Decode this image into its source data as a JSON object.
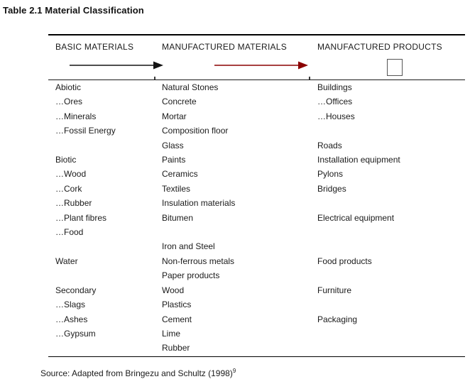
{
  "title": "Table 2.1 Material Classification",
  "table": {
    "columns": [
      {
        "header": "BASIC MATERIALS",
        "marker": "black-arrow-icon"
      },
      {
        "header": "MANUFACTURED MATERIALS",
        "marker": "dark-red-arrow-icon"
      },
      {
        "header": "MANUFACTURED PRODUCTS",
        "marker": "square-outline-icon"
      }
    ],
    "rows": [
      [
        "Abiotic",
        "Natural Stones",
        "Buildings"
      ],
      [
        "…Ores",
        "Concrete",
        "…Offices"
      ],
      [
        "…Minerals",
        "Mortar",
        "…Houses"
      ],
      [
        "…Fossil Energy",
        "Composition floor",
        ""
      ],
      [
        "",
        "Glass",
        "Roads"
      ],
      [
        "Biotic",
        "Paints",
        "Installation equipment"
      ],
      [
        "…Wood",
        "Ceramics",
        "Pylons"
      ],
      [
        "…Cork",
        "Textiles",
        "Bridges"
      ],
      [
        "…Rubber",
        "Insulation materials",
        ""
      ],
      [
        "…Plant fibres",
        "Bitumen",
        "Electrical equipment"
      ],
      [
        "…Food",
        "",
        ""
      ],
      [
        "",
        "Iron and Steel",
        ""
      ],
      [
        "Water",
        "Non-ferrous metals",
        "Food products"
      ],
      [
        "",
        "Paper products",
        ""
      ],
      [
        "Secondary",
        "Wood",
        "Furniture"
      ],
      [
        "…Slags",
        "Plastics",
        ""
      ],
      [
        "…Ashes",
        "Cement",
        "Packaging"
      ],
      [
        "…Gypsum",
        "Lime",
        ""
      ],
      [
        "",
        "Rubber",
        ""
      ]
    ]
  },
  "source": {
    "text": "Source: Adapted from Bringezu and Schultz (1998)",
    "superscript": "9"
  },
  "colors": {
    "arrow_black": "#141414",
    "arrow_red": "#8B0000",
    "rule": "#000000"
  }
}
